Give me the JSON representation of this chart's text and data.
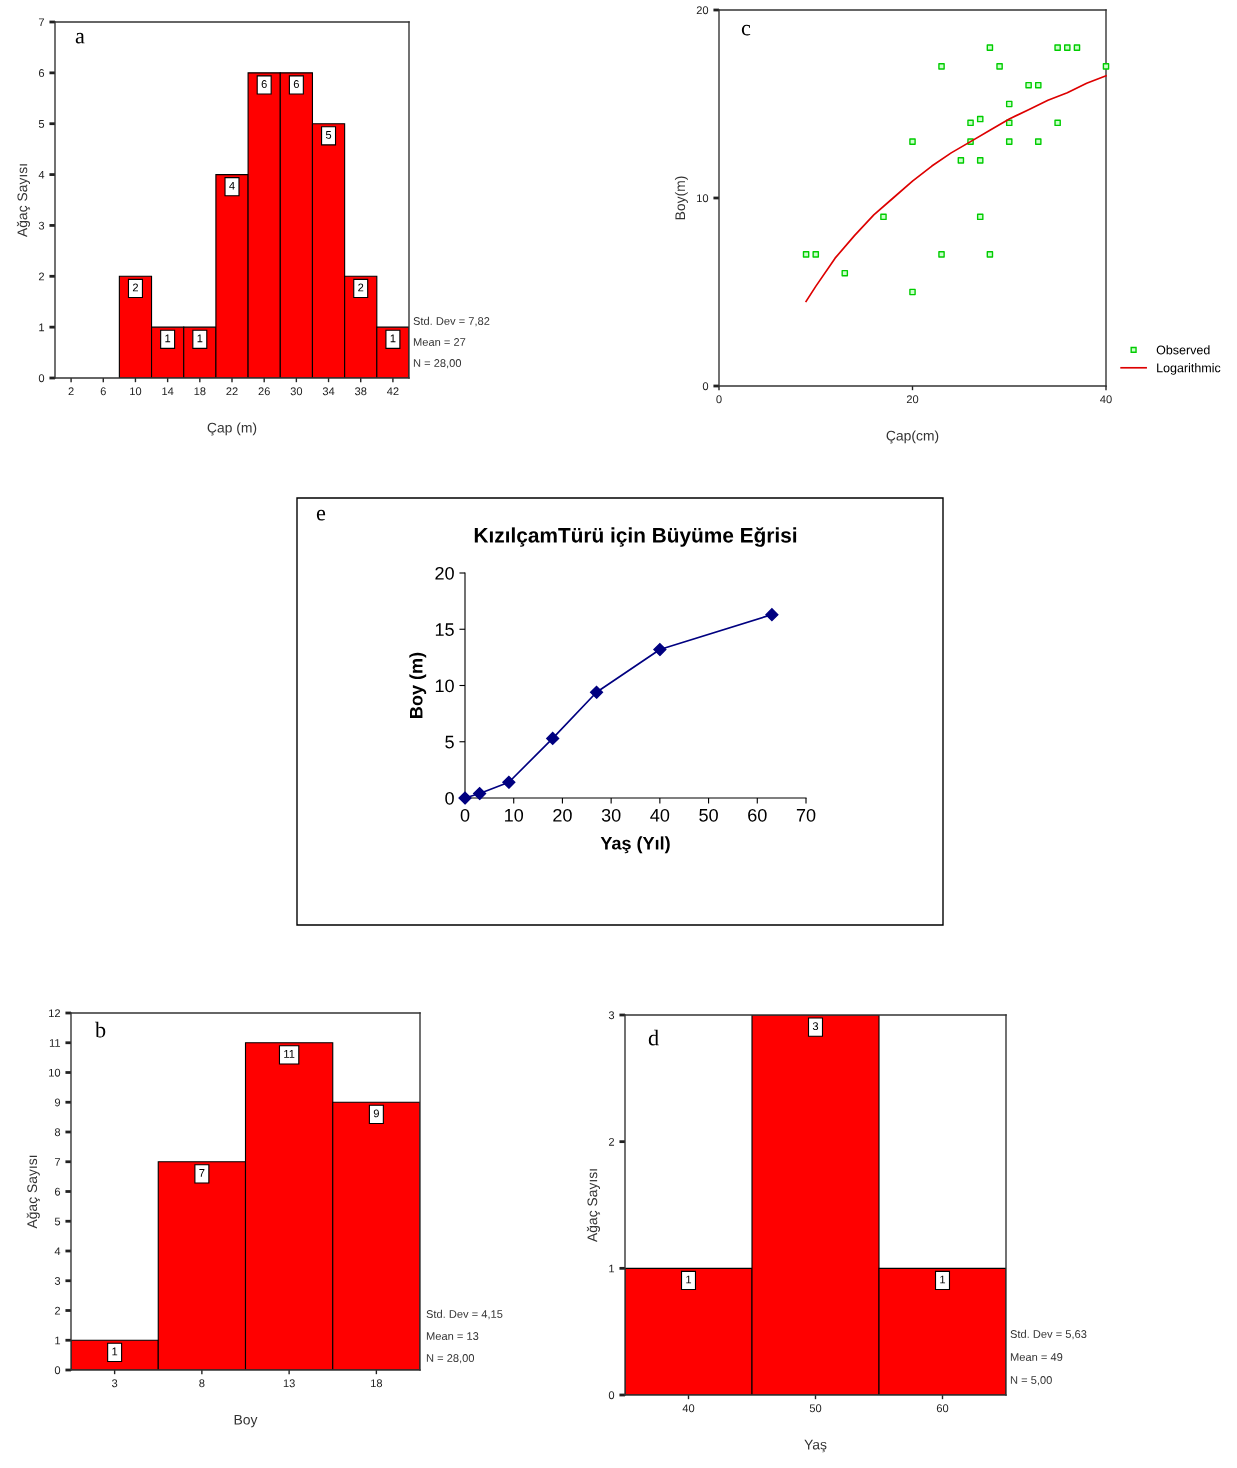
{
  "chart_data": [
    {
      "type": "histogram",
      "xlabel": "Çap (m)",
      "ylabel": "Ağaç Sayısı",
      "color": "#ff0000",
      "bins": [
        0,
        4,
        8,
        12,
        16,
        20,
        24,
        28,
        32,
        36,
        40,
        44
      ],
      "values": [
        0,
        0,
        2,
        1,
        1,
        4,
        6,
        6,
        5,
        2,
        1
      ],
      "value_labels": [
        null,
        null,
        "2",
        "1",
        "1",
        "4",
        "6",
        "6",
        "5",
        "2",
        "1"
      ],
      "xlim": [
        0,
        44
      ],
      "xticks": [
        2,
        6,
        10,
        14,
        18,
        22,
        26,
        30,
        34,
        38,
        42
      ],
      "ylim": [
        0,
        7
      ],
      "yticks": [
        0,
        1,
        2,
        3,
        4,
        5,
        6,
        7
      ],
      "annotations": [
        "a",
        "Std. Dev = 7,82",
        "Mean = 27",
        "N = 28,00"
      ]
    },
    {
      "type": "scatter",
      "xlabel": "Çap(cm)",
      "ylabel": "Boy(m)",
      "legend": "right",
      "series": [
        {
          "name": "Observed",
          "type": "scatter",
          "marker": "square",
          "color": "#00cc00",
          "x": [
            9,
            10,
            13,
            17,
            20,
            20,
            23,
            23,
            25,
            26,
            26,
            27,
            27,
            27,
            28,
            28,
            29,
            30,
            30,
            30,
            32,
            33,
            33,
            35,
            35,
            36,
            37,
            40
          ],
          "values": [
            7,
            7,
            6,
            9,
            13,
            5,
            17,
            7,
            12,
            14,
            13,
            14.2,
            12,
            9,
            18,
            7,
            17,
            15,
            14,
            13,
            16,
            16,
            13,
            18,
            14,
            18,
            18,
            17
          ]
        },
        {
          "name": "Logarithmic",
          "type": "line",
          "color": "#dd0000",
          "x": [
            9,
            10,
            12,
            14,
            16,
            18,
            20,
            22,
            24,
            26,
            28,
            30,
            32,
            34,
            36,
            38,
            40
          ],
          "values": [
            4.5,
            5.3,
            6.8,
            8.0,
            9.1,
            10.0,
            10.9,
            11.7,
            12.4,
            13.0,
            13.6,
            14.2,
            14.7,
            15.2,
            15.6,
            16.1,
            16.5
          ]
        }
      ],
      "xlim": [
        0,
        40
      ],
      "xticks": [
        0,
        20,
        40
      ],
      "ylim": [
        0,
        20
      ],
      "yticks": [
        0,
        10,
        20
      ],
      "annotations": [
        "c"
      ]
    },
    {
      "type": "line",
      "title": "KızılçamTürü için Büyüme Eğrisi",
      "xlabel": "Yaş (Yıl)",
      "ylabel": "Boy (m)",
      "x": [
        0,
        3,
        9,
        18,
        27,
        40,
        63
      ],
      "values": [
        0,
        0.4,
        1.4,
        5.3,
        9.4,
        13.2,
        16.3
      ],
      "color": "#000080",
      "marker": "diamond",
      "line_style": "solid",
      "xlim": [
        0,
        70
      ],
      "xticks": [
        0,
        10,
        20,
        30,
        40,
        50,
        60,
        70
      ],
      "ylim": [
        0,
        20
      ],
      "yticks": [
        0,
        5,
        10,
        15,
        20
      ],
      "annotations": [
        "e"
      ]
    },
    {
      "type": "histogram",
      "xlabel": "Boy",
      "ylabel": "Ağaç Sayısı",
      "color": "#ff0000",
      "bins": [
        0.5,
        5.5,
        10.5,
        15.5,
        20.5
      ],
      "values": [
        1,
        7,
        11,
        9
      ],
      "data_labels": true,
      "xlim": [
        0.5,
        20.5
      ],
      "xticks": [
        3,
        8,
        13,
        18
      ],
      "ylim": [
        0,
        12
      ],
      "yticks": [
        0,
        1,
        2,
        3,
        4,
        5,
        6,
        7,
        8,
        9,
        10,
        11,
        12
      ],
      "annotations": [
        "b",
        "Std. Dev = 4,15",
        "Mean = 13",
        "N = 28,00"
      ]
    },
    {
      "type": "histogram",
      "xlabel": "Yaş",
      "ylabel": "Ağaç Sayısı",
      "color": "#ff0000",
      "bins": [
        35,
        45,
        55,
        65
      ],
      "values": [
        1,
        3,
        1
      ],
      "data_labels": true,
      "xlim": [
        35,
        65
      ],
      "xticks": [
        40,
        50,
        60
      ],
      "ylim": [
        0,
        3
      ],
      "yticks": [
        0,
        1,
        2,
        3
      ],
      "annotations": [
        "d",
        "Std. Dev = 5,63",
        "Mean = 49",
        "N = 5,00"
      ]
    }
  ]
}
